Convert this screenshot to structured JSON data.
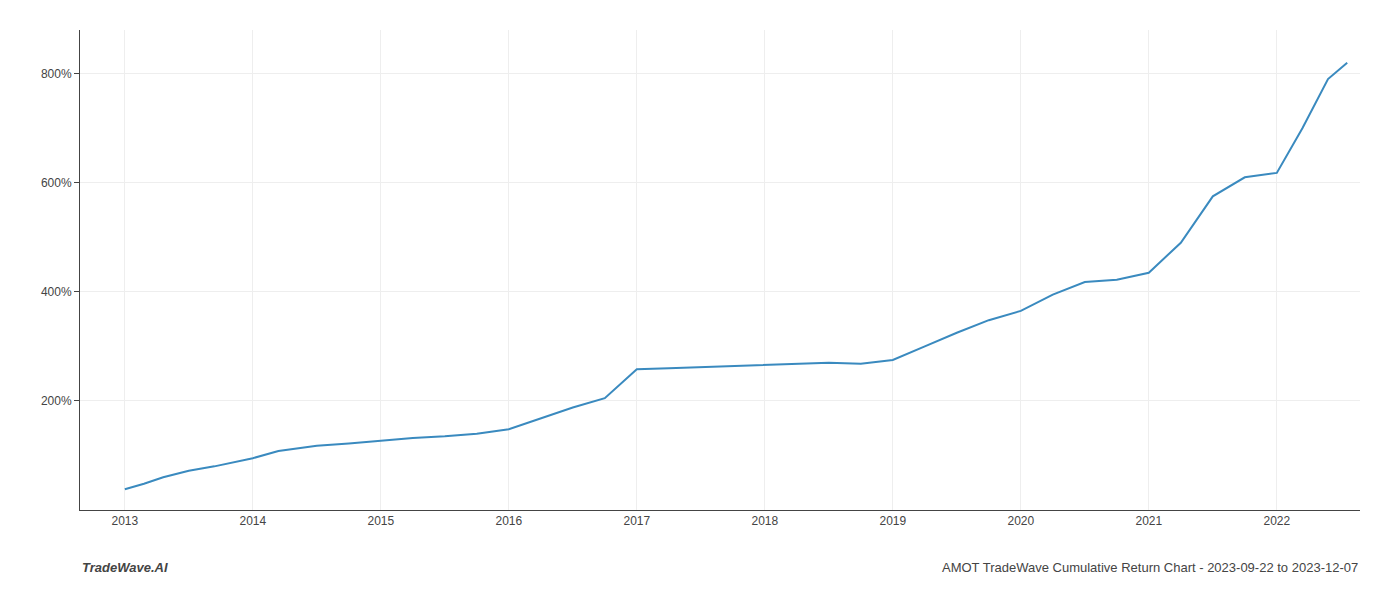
{
  "chart_data": {
    "type": "line",
    "annotations": [
      "TradeWave.AI",
      "AMOT TradeWave Cumulative Return Chart - 2023-09-22 to 2023-12-07"
    ],
    "color": "#3a8abf",
    "x": [
      2013.0,
      2013.15,
      2013.3,
      2013.5,
      2013.7,
      2013.85,
      2014.0,
      2014.2,
      2014.5,
      2014.75,
      2015.0,
      2015.25,
      2015.5,
      2015.75,
      2016.0,
      2016.25,
      2016.5,
      2016.75,
      2017.0,
      2017.25,
      2017.5,
      2017.75,
      2018.0,
      2018.25,
      2018.5,
      2018.75,
      2019.0,
      2019.25,
      2019.5,
      2019.75,
      2020.0,
      2020.25,
      2020.5,
      2020.75,
      2021.0,
      2021.25,
      2021.5,
      2021.75,
      2022.0,
      2022.2,
      2022.4,
      2022.55
    ],
    "values": [
      38,
      48,
      60,
      72,
      80,
      88,
      95,
      108,
      118,
      122,
      127,
      132,
      135,
      140,
      148,
      168,
      188,
      205,
      258,
      260,
      262,
      264,
      266,
      268,
      270,
      268,
      275,
      300,
      325,
      348,
      365,
      395,
      418,
      422,
      435,
      490,
      575,
      610,
      618,
      700,
      790,
      820
    ],
    "xlim": [
      2012.65,
      2022.65
    ],
    "xticks": [
      2013,
      2014,
      2015,
      2016,
      2017,
      2018,
      2019,
      2020,
      2021,
      2022
    ],
    "ylim": [
      0,
      880
    ],
    "yticks": [
      {
        "value": 200,
        "label": "200%"
      },
      {
        "value": 400,
        "label": "400%"
      },
      {
        "value": 600,
        "label": "600%"
      },
      {
        "value": 800,
        "label": "800%"
      }
    ],
    "grid": true
  }
}
